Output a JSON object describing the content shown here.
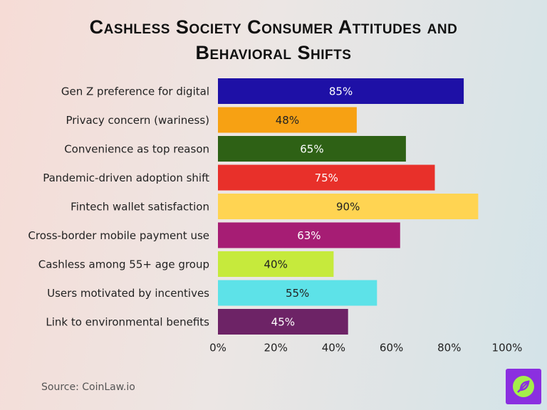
{
  "chart_data": {
    "type": "bar",
    "orientation": "horizontal",
    "title": "Cashless Society Consumer Attitudes and Behavioral Shifts",
    "categories": [
      "Gen Z preference for digital",
      "Privacy concern (wariness)",
      "Convenience as top reason",
      "Pandemic-driven adoption shift",
      "Fintech wallet satisfaction",
      "Cross-border mobile payment use",
      "Cashless among 55+ age group",
      "Users motivated by incentives",
      "Link to environmental benefits"
    ],
    "values": [
      85,
      48,
      65,
      75,
      90,
      63,
      40,
      55,
      45
    ],
    "value_labels": [
      "85%",
      "48%",
      "65%",
      "75%",
      "90%",
      "63%",
      "40%",
      "55%",
      "45%"
    ],
    "colors": [
      "#1e10a6",
      "#f7a113",
      "#2e6115",
      "#e8302a",
      "#ffd452",
      "#a61d74",
      "#c6ea3c",
      "#5de2e8",
      "#6d2366"
    ],
    "xlim": [
      0,
      100
    ],
    "xticks": [
      {
        "value": 0,
        "label": "0%"
      },
      {
        "value": 20,
        "label": "20%"
      },
      {
        "value": 40,
        "label": "40%"
      },
      {
        "value": 60,
        "label": "60%"
      },
      {
        "value": 80,
        "label": "80%"
      },
      {
        "value": 100,
        "label": "100%"
      }
    ],
    "source": "Source: CoinLaw.io"
  }
}
